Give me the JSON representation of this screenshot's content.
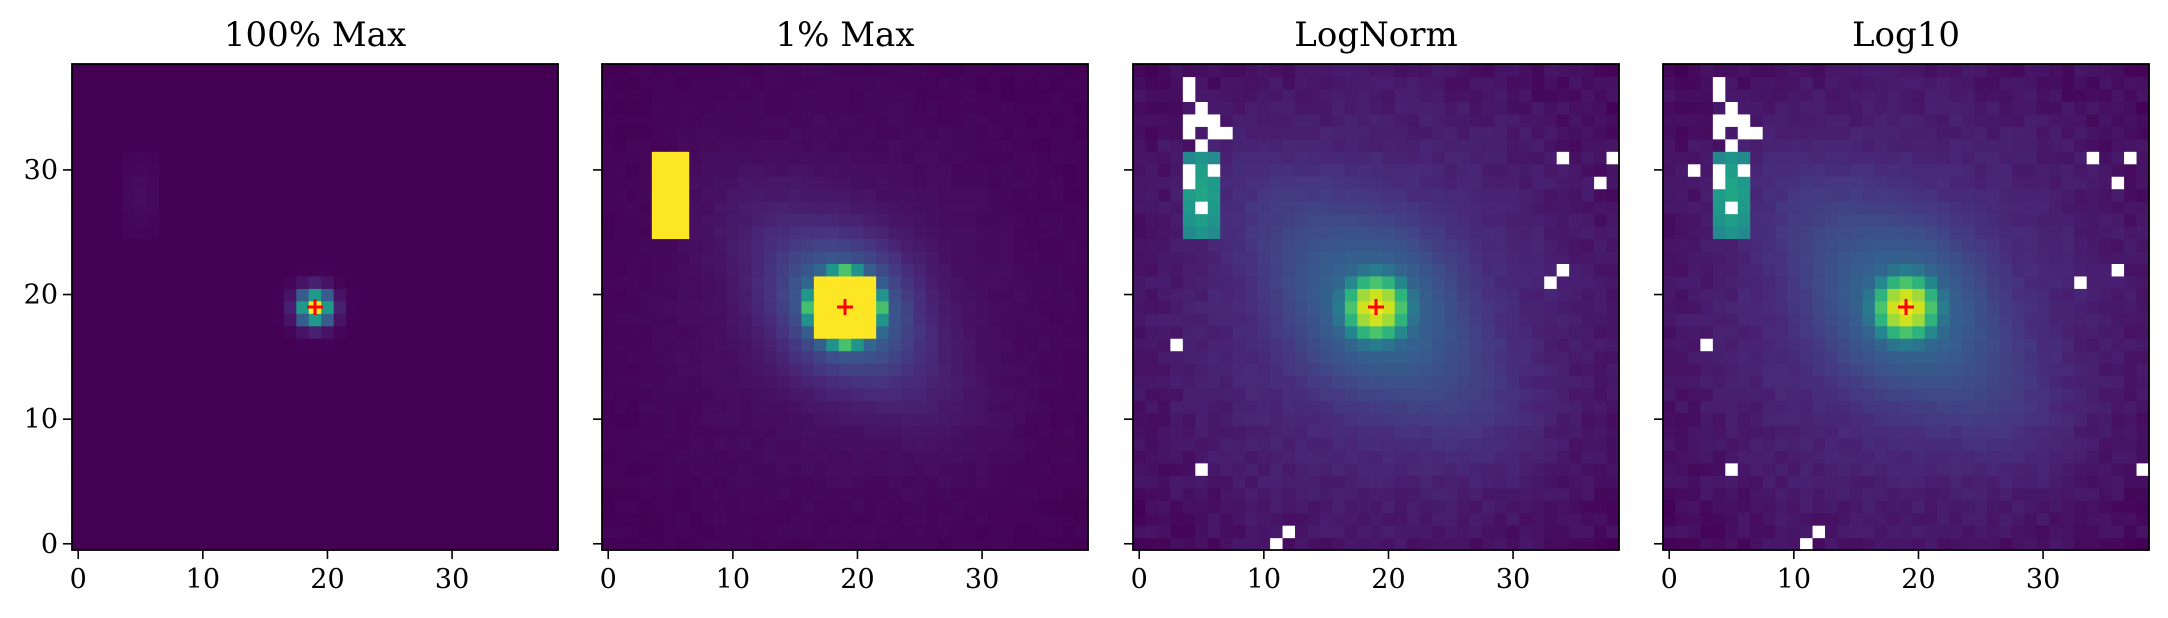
{
  "chart_data": [
    {
      "type": "heatmap",
      "title": "100% Max",
      "xlim": [
        -0.5,
        38.5
      ],
      "ylim": [
        -0.5,
        38.5
      ],
      "xticks": [
        0,
        10,
        20,
        30
      ],
      "yticks": [
        0,
        10,
        20,
        30
      ],
      "xtick_labels": [
        "0",
        "10",
        "20",
        "30"
      ],
      "ytick_labels": [
        "0",
        "10",
        "20",
        "30"
      ],
      "show_y_tick_labels": true,
      "grid": false,
      "colormap": "viridis",
      "grid_size": [
        39,
        39
      ],
      "scaling": "linear, 100% of max",
      "source_peak": [
        19,
        19
      ],
      "secondary_source": {
        "x": [
          4,
          6
        ],
        "y": [
          25,
          31
        ]
      },
      "marker": {
        "x": 19,
        "y": 19,
        "symbol": "+",
        "color": "#ff0000"
      }
    },
    {
      "type": "heatmap",
      "title": "1% Max",
      "xlim": [
        -0.5,
        38.5
      ],
      "ylim": [
        -0.5,
        38.5
      ],
      "xticks": [
        0,
        10,
        20,
        30
      ],
      "yticks": [
        0,
        10,
        20,
        30
      ],
      "xtick_labels": [
        "0",
        "10",
        "20",
        "30"
      ],
      "ytick_labels": [
        "",
        "",
        "",
        ""
      ],
      "show_y_tick_labels": false,
      "grid": false,
      "colormap": "viridis",
      "grid_size": [
        39,
        39
      ],
      "scaling": "linear, clipped at 1% of max",
      "source_peak": [
        19,
        19
      ],
      "secondary_source": {
        "x": [
          4,
          6
        ],
        "y": [
          25,
          31
        ]
      },
      "marker": {
        "x": 19,
        "y": 19,
        "symbol": "+",
        "color": "#ff0000"
      }
    },
    {
      "type": "heatmap",
      "title": "LogNorm",
      "xlim": [
        -0.5,
        38.5
      ],
      "ylim": [
        -0.5,
        38.5
      ],
      "xticks": [
        0,
        10,
        20,
        30
      ],
      "yticks": [
        0,
        10,
        20,
        30
      ],
      "xtick_labels": [
        "0",
        "10",
        "20",
        "30"
      ],
      "ytick_labels": [
        "",
        "",
        "",
        ""
      ],
      "show_y_tick_labels": false,
      "grid": false,
      "colormap": "viridis",
      "grid_size": [
        39,
        39
      ],
      "scaling": "LogNorm",
      "source_peak": [
        19,
        19
      ],
      "secondary_source": {
        "x": [
          4,
          6
        ],
        "y": [
          25,
          31
        ]
      },
      "masked_cells": [
        [
          4,
          37
        ],
        [
          4,
          36
        ],
        [
          5,
          35
        ],
        [
          4,
          34
        ],
        [
          5,
          34
        ],
        [
          6,
          34
        ],
        [
          4,
          33
        ],
        [
          6,
          33
        ],
        [
          7,
          33
        ],
        [
          5,
          32
        ],
        [
          4,
          30
        ],
        [
          6,
          30
        ],
        [
          4,
          29
        ],
        [
          5,
          27
        ],
        [
          34,
          31
        ],
        [
          38,
          31
        ],
        [
          37,
          29
        ],
        [
          34,
          22
        ],
        [
          33,
          21
        ],
        [
          3,
          16
        ],
        [
          5,
          6
        ],
        [
          12,
          1
        ],
        [
          11,
          0
        ]
      ],
      "marker": {
        "x": 19,
        "y": 19,
        "symbol": "+",
        "color": "#ff0000"
      }
    },
    {
      "type": "heatmap",
      "title": "Log10",
      "xlim": [
        -0.5,
        38.5
      ],
      "ylim": [
        -0.5,
        38.5
      ],
      "xticks": [
        0,
        10,
        20,
        30
      ],
      "yticks": [
        0,
        10,
        20,
        30
      ],
      "xtick_labels": [
        "0",
        "10",
        "20",
        "30"
      ],
      "ytick_labels": [
        "",
        "",
        "",
        ""
      ],
      "show_y_tick_labels": false,
      "grid": false,
      "colormap": "viridis",
      "grid_size": [
        39,
        39
      ],
      "scaling": "log10",
      "source_peak": [
        19,
        19
      ],
      "secondary_source": {
        "x": [
          4,
          6
        ],
        "y": [
          25,
          31
        ]
      },
      "masked_cells": [
        [
          4,
          37
        ],
        [
          4,
          36
        ],
        [
          5,
          35
        ],
        [
          4,
          34
        ],
        [
          5,
          34
        ],
        [
          6,
          34
        ],
        [
          4,
          33
        ],
        [
          6,
          33
        ],
        [
          7,
          33
        ],
        [
          5,
          32
        ],
        [
          2,
          30
        ],
        [
          4,
          30
        ],
        [
          6,
          30
        ],
        [
          4,
          29
        ],
        [
          5,
          27
        ],
        [
          34,
          31
        ],
        [
          37,
          31
        ],
        [
          36,
          29
        ],
        [
          36,
          22
        ],
        [
          33,
          21
        ],
        [
          3,
          16
        ],
        [
          5,
          6
        ],
        [
          38,
          6
        ],
        [
          12,
          1
        ],
        [
          11,
          0
        ]
      ],
      "marker": {
        "x": 19,
        "y": 19,
        "symbol": "+",
        "color": "#ff0000"
      }
    }
  ]
}
